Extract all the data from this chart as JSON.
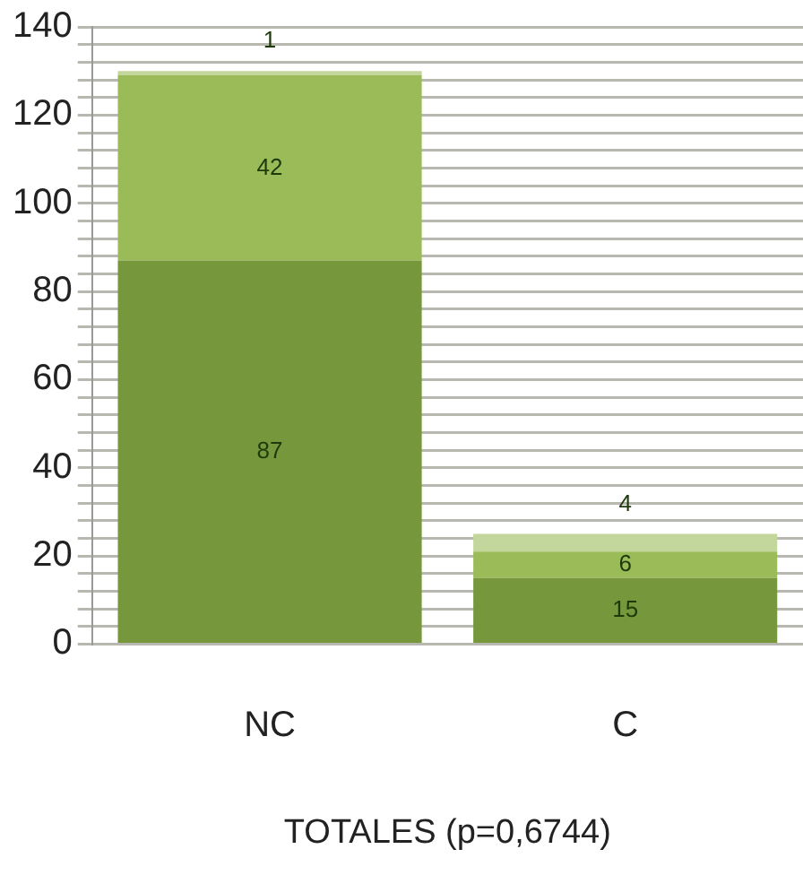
{
  "chart_data": {
    "type": "bar",
    "stacked": true,
    "xlabel": "TOTALES (p=0,6744)",
    "categories": [
      "NC",
      "C"
    ],
    "series": [
      {
        "color": "#77973d",
        "values": [
          87,
          15
        ]
      },
      {
        "color": "#9bbb59",
        "values": [
          42,
          6
        ]
      },
      {
        "color": "#c3d69b",
        "values": [
          1,
          4
        ]
      }
    ],
    "ylim": [
      0,
      140
    ],
    "yticks": [
      0,
      {
        "value": 4,
        "label": null
      },
      {
        "value": 8,
        "label": null
      },
      {
        "value": 12,
        "label": null
      },
      {
        "value": 16,
        "label": null
      },
      20,
      {
        "value": 24,
        "label": null
      },
      {
        "value": 28,
        "label": null
      },
      {
        "value": 32,
        "label": null
      },
      {
        "value": 36,
        "label": null
      },
      40,
      {
        "value": 44,
        "label": null
      },
      {
        "value": 48,
        "label": null
      },
      {
        "value": 52,
        "label": null
      },
      {
        "value": 56,
        "label": null
      },
      60,
      {
        "value": 64,
        "label": null
      },
      {
        "value": 68,
        "label": null
      },
      {
        "value": 72,
        "label": null
      },
      {
        "value": 76,
        "label": null
      },
      80,
      {
        "value": 84,
        "label": null
      },
      {
        "value": 88,
        "label": null
      },
      {
        "value": 92,
        "label": null
      },
      {
        "value": 96,
        "label": null
      },
      100,
      {
        "value": 104,
        "label": null
      },
      {
        "value": 108,
        "label": null
      },
      {
        "value": 112,
        "label": null
      },
      {
        "value": 116,
        "label": null
      },
      120,
      {
        "value": 124,
        "label": null
      },
      {
        "value": 128,
        "label": null
      },
      {
        "value": 132,
        "label": null
      },
      {
        "value": 136,
        "label": null
      },
      140
    ],
    "grid": "y",
    "data_labels": true,
    "legend": false
  }
}
